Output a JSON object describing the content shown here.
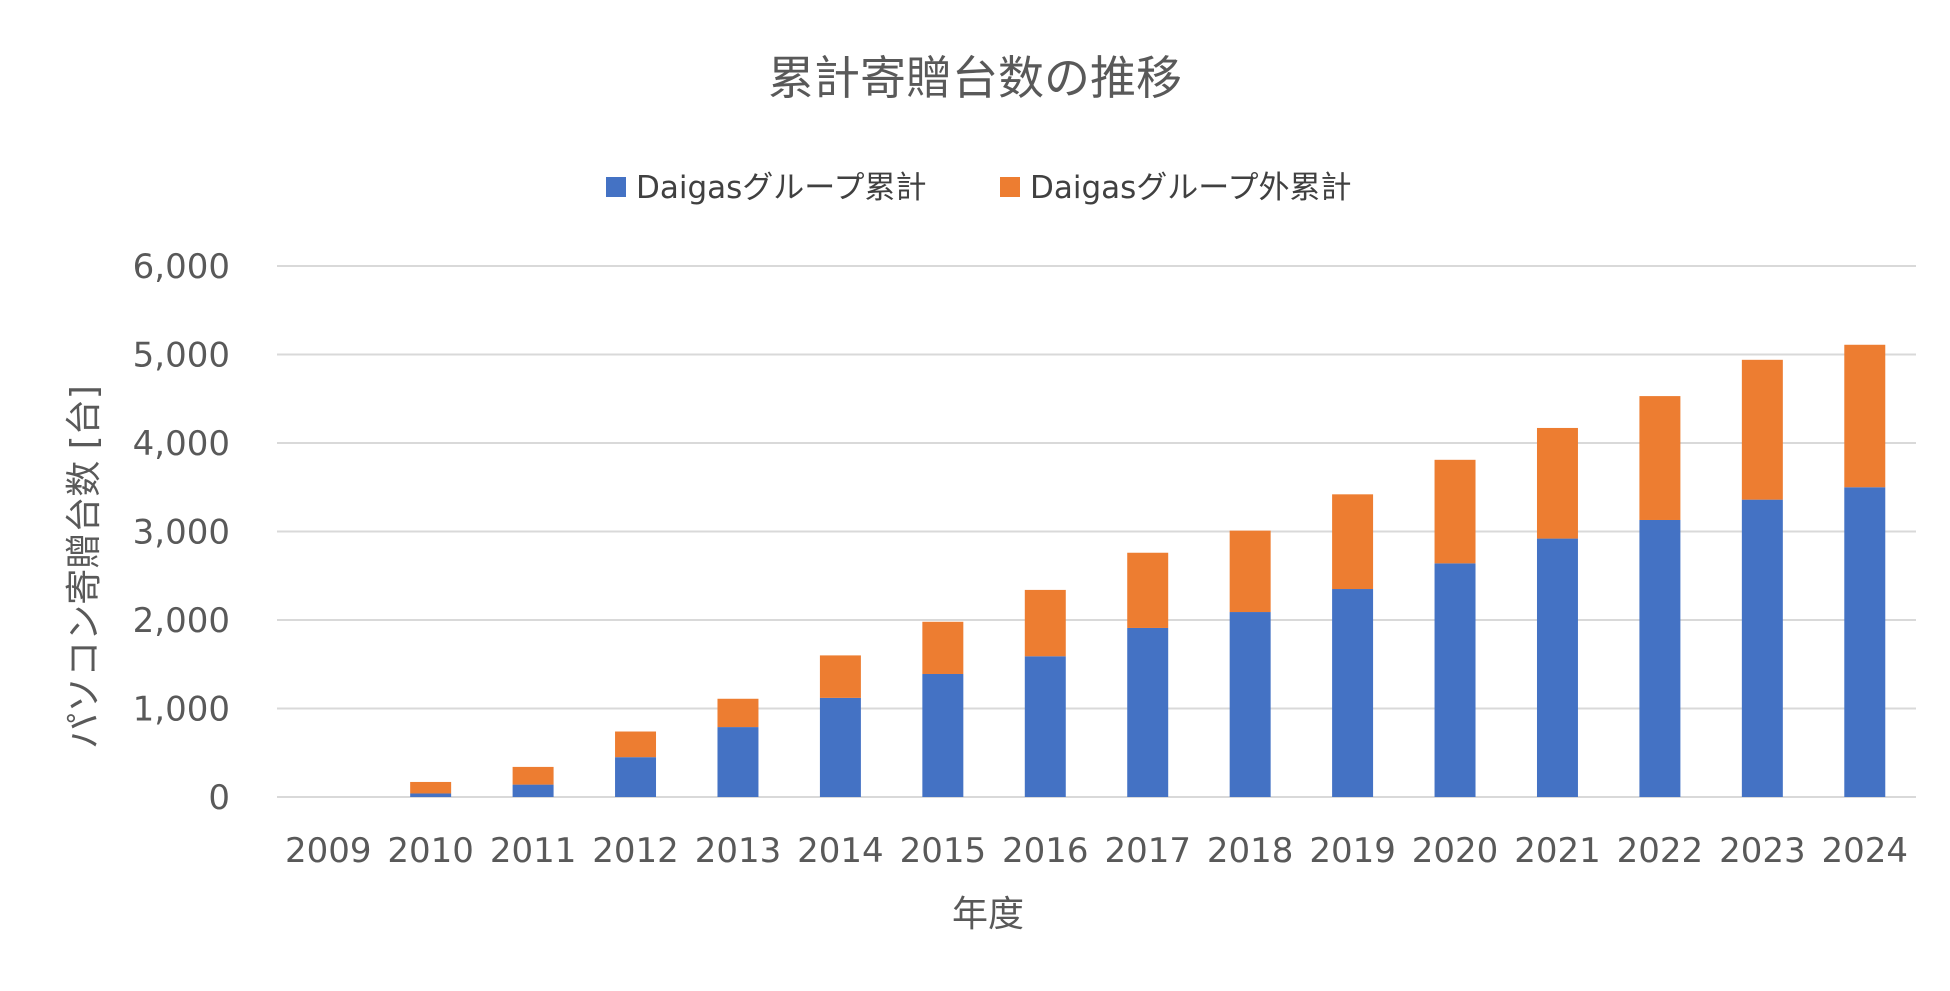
{
  "chart_data": {
    "type": "bar",
    "stacked": true,
    "title": "累計寄贈台数の推移",
    "xlabel": "年度",
    "ylabel": "パソコン寄贈台数 [台]",
    "ylim": [
      0,
      6000
    ],
    "yticks": [
      0,
      1000,
      2000,
      3000,
      4000,
      5000,
      6000
    ],
    "ytick_labels": [
      "0",
      "1,000",
      "2,000",
      "3,000",
      "4,000",
      "5,000",
      "6,000"
    ],
    "grid": true,
    "legend_position": "top",
    "categories": [
      "2009",
      "2010",
      "2011",
      "2012",
      "2013",
      "2014",
      "2015",
      "2016",
      "2017",
      "2018",
      "2019",
      "2020",
      "2021",
      "2022",
      "2023",
      "2024"
    ],
    "series": [
      {
        "name": "Daigasグループ累計",
        "color": "#4472c4",
        "values": [
          0,
          40,
          140,
          450,
          790,
          1120,
          1390,
          1590,
          1910,
          2090,
          2350,
          2640,
          2920,
          3130,
          3360,
          3500
        ]
      },
      {
        "name": "Daigasグループ外累計",
        "color": "#ed7d31",
        "values": [
          0,
          130,
          200,
          290,
          320,
          480,
          590,
          750,
          850,
          920,
          1070,
          1170,
          1250,
          1400,
          1580,
          1610
        ]
      }
    ]
  }
}
